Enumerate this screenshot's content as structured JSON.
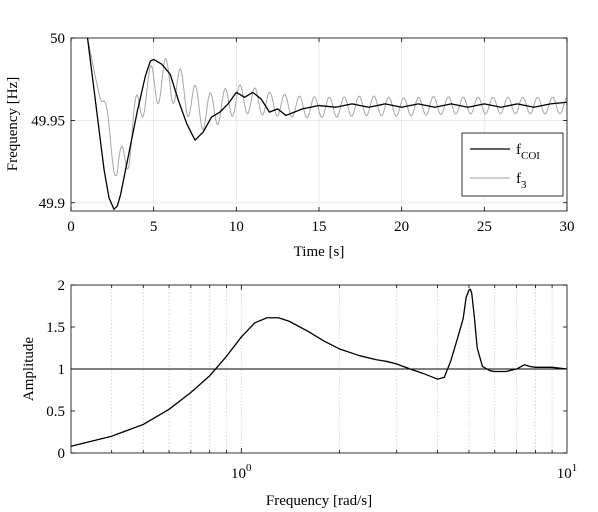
{
  "chart_data": [
    {
      "type": "line",
      "xlabel": "Time [s]",
      "ylabel": "Frequency [Hz]",
      "xlim": [
        0,
        30
      ],
      "ylim": [
        49.895,
        50
      ],
      "xticks": [
        0,
        5,
        10,
        15,
        20,
        25,
        30
      ],
      "xtick_labels": [
        "0",
        "5",
        "10",
        "15",
        "20",
        "25",
        "30"
      ],
      "yticks": [
        49.9,
        49.95,
        50
      ],
      "ytick_labels": [
        "49.9",
        "49.95",
        "50"
      ],
      "grid": true,
      "legend_position": "lower-right",
      "series": [
        {
          "name": "f",
          "name_sub": "COI",
          "color": "#000000",
          "x": [
            1,
            1.5,
            2,
            2.3,
            2.6,
            2.8,
            3,
            3.5,
            4,
            4.5,
            4.8,
            5,
            5.5,
            6,
            6.5,
            7,
            7.5,
            8,
            8.5,
            9,
            9.5,
            10,
            10.5,
            11,
            11.5,
            12,
            12.5,
            13,
            14,
            15,
            16,
            17,
            18,
            19,
            20,
            21,
            22,
            23,
            24,
            25,
            26,
            27,
            28,
            29,
            30
          ],
          "y": [
            50,
            49.96,
            49.92,
            49.903,
            49.896,
            49.898,
            49.905,
            49.93,
            49.955,
            49.977,
            49.986,
            49.987,
            49.984,
            49.978,
            49.962,
            49.948,
            49.938,
            49.943,
            49.952,
            49.955,
            49.96,
            49.967,
            49.964,
            49.967,
            49.963,
            49.955,
            49.957,
            49.953,
            49.957,
            49.959,
            49.958,
            49.96,
            49.958,
            49.96,
            49.958,
            49.96,
            49.958,
            49.96,
            49.958,
            49.96,
            49.958,
            49.96,
            49.958,
            49.96,
            49.961
          ]
        },
        {
          "name": "f",
          "name_sub": "3",
          "color": "#a6a6a6",
          "oscillation_period_s": 0.9,
          "x": [
            1,
            1.5,
            2,
            2.5,
            2.8,
            3,
            3.5,
            4,
            4.5,
            5,
            5.5,
            6,
            7,
            8,
            9,
            10,
            11,
            12,
            14,
            16,
            18,
            20,
            22,
            24,
            26,
            28,
            30
          ],
          "y": [
            50,
            49.975,
            49.958,
            49.935,
            49.918,
            49.92,
            49.935,
            49.955,
            49.968,
            49.972,
            49.974,
            49.975,
            49.965,
            49.955,
            49.958,
            49.963,
            49.962,
            49.96,
            49.958,
            49.958,
            49.959,
            49.958,
            49.959,
            49.959,
            49.959,
            49.959,
            49.959
          ],
          "amplitude": [
            0,
            0,
            0.006,
            0.01,
            0.012,
            0.013,
            0.013,
            0.012,
            0.012,
            0.013,
            0.013,
            0.013,
            0.012,
            0.011,
            0.01,
            0.009,
            0.008,
            0.007,
            0.0065,
            0.006,
            0.006,
            0.0055,
            0.0055,
            0.005,
            0.005,
            0.005,
            0.005
          ]
        }
      ]
    },
    {
      "type": "line",
      "xlabel": "Frequency [rad/s]",
      "ylabel": "Amplitude",
      "xscale": "log",
      "xlim": [
        0.3,
        10
      ],
      "ylim": [
        0,
        2
      ],
      "xticks": [
        1,
        10
      ],
      "xtick_labels": [
        {
          "base": "10",
          "exp": "0"
        },
        {
          "base": "10",
          "exp": "1"
        }
      ],
      "yticks": [
        0,
        0.5,
        1,
        1.5,
        2
      ],
      "ytick_labels": [
        "0",
        "0.5",
        "1",
        "1.5",
        "2"
      ],
      "grid": "vertical-minor",
      "reference_line": 1,
      "series": [
        {
          "color": "#000000",
          "x": [
            0.3,
            0.4,
            0.5,
            0.6,
            0.7,
            0.8,
            0.9,
            1.0,
            1.1,
            1.2,
            1.3,
            1.4,
            1.6,
            1.8,
            2.0,
            2.3,
            2.6,
            2.8,
            3.0,
            3.3,
            3.6,
            4.0,
            4.2,
            4.4,
            4.6,
            4.8,
            4.9,
            5.0,
            5.05,
            5.1,
            5.2,
            5.3,
            5.5,
            5.8,
            6.0,
            6.5,
            7.0,
            7.4,
            7.7,
            8.0,
            8.5,
            9.0,
            10.0
          ],
          "y": [
            0.08,
            0.2,
            0.34,
            0.52,
            0.72,
            0.92,
            1.15,
            1.38,
            1.55,
            1.61,
            1.61,
            1.57,
            1.45,
            1.33,
            1.24,
            1.16,
            1.11,
            1.09,
            1.06,
            1.0,
            0.95,
            0.88,
            0.9,
            1.1,
            1.35,
            1.6,
            1.85,
            1.94,
            1.95,
            1.9,
            1.6,
            1.25,
            1.03,
            0.98,
            0.97,
            0.97,
            1.0,
            1.05,
            1.03,
            1.02,
            1.02,
            1.02,
            1.0
          ]
        }
      ]
    }
  ]
}
